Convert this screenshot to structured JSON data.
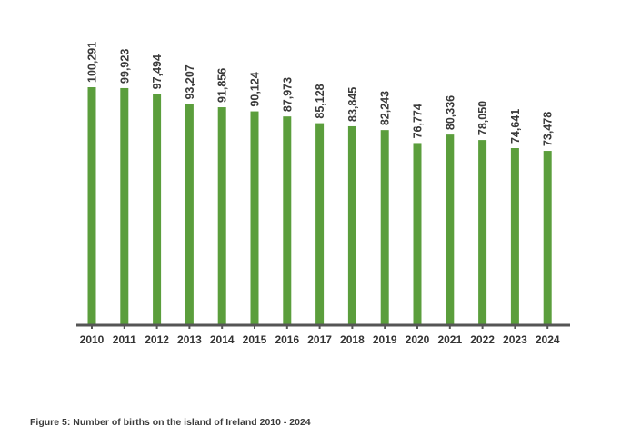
{
  "chart_data": {
    "type": "bar",
    "categories": [
      "2010",
      "2011",
      "2012",
      "2013",
      "2014",
      "2015",
      "2016",
      "2017",
      "2018",
      "2019",
      "2020",
      "2021",
      "2022",
      "2023",
      "2024"
    ],
    "values": [
      100291,
      99923,
      97494,
      93207,
      91856,
      90124,
      87973,
      85128,
      83845,
      82243,
      76774,
      80336,
      78050,
      74641,
      73478
    ],
    "value_labels": [
      "100,291",
      "99,923",
      "97,494",
      "93,207",
      "91,856",
      "90,124",
      "87,973",
      "85,128",
      "83,845",
      "82,243",
      "76,774",
      "80,336",
      "78,050",
      "74,641",
      "73,478"
    ],
    "title": "Figure 5: Number of births on the island of Ireland 2010 - 2024",
    "xlabel": "",
    "ylabel": "",
    "ylim": [
      0,
      100291
    ],
    "grid": false,
    "legend": "none",
    "bar_color": "#5b9e3c"
  }
}
